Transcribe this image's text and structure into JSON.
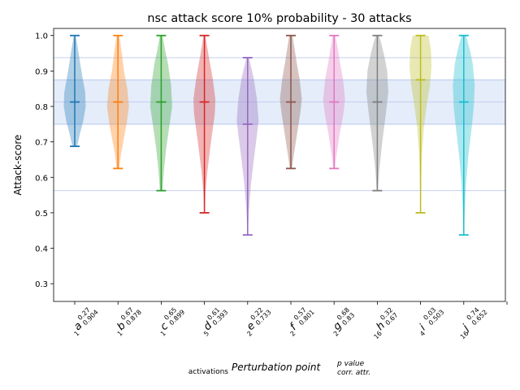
{
  "chart_data": {
    "type": "violin",
    "title": "nsc attack score 10% probability - 30 attacks",
    "ylabel": "Attack-score",
    "xlabel": {
      "main": "Perturbation point",
      "subscript": "activations",
      "superscript_top": "p value",
      "superscript_bottom": "corr. attr."
    },
    "ylim": [
      0.25,
      1.02
    ],
    "yticks": [
      0.3,
      0.4,
      0.5,
      0.6,
      0.7,
      0.8,
      0.9,
      1.0
    ],
    "ytick_labels": [
      "0.3",
      "0.4",
      "0.5",
      "0.6",
      "0.7",
      "0.8",
      "0.9",
      "1.0"
    ],
    "reference_band": {
      "low": 0.75,
      "high": 0.875,
      "color": "#dbe7f7"
    },
    "reference_lines": [
      0.5625,
      0.8125,
      0.9375
    ],
    "series": [
      {
        "letter": "a",
        "activations": "1",
        "p": "0.27",
        "corr": "0.904",
        "color": "#1f77b4",
        "min": 0.6875,
        "max": 1.0,
        "median": 0.8125,
        "profile": [
          [
            0.6875,
            0.22
          ],
          [
            0.72,
            0.45
          ],
          [
            0.76,
            0.78
          ],
          [
            0.8,
            1.0
          ],
          [
            0.84,
            0.95
          ],
          [
            0.88,
            0.72
          ],
          [
            0.92,
            0.5
          ],
          [
            0.96,
            0.3
          ],
          [
            1.0,
            0.08
          ]
        ]
      },
      {
        "letter": "b",
        "activations": "1",
        "p": "0.67",
        "corr": "0.878",
        "color": "#ff7f0e",
        "min": 0.625,
        "max": 1.0,
        "median": 0.8125,
        "profile": [
          [
            0.625,
            0.12
          ],
          [
            0.66,
            0.25
          ],
          [
            0.7,
            0.48
          ],
          [
            0.75,
            0.78
          ],
          [
            0.8,
            1.0
          ],
          [
            0.85,
            0.85
          ],
          [
            0.9,
            0.55
          ],
          [
            0.95,
            0.35
          ],
          [
            1.0,
            0.12
          ]
        ]
      },
      {
        "letter": "c",
        "activations": "1",
        "p": "0.65",
        "corr": "0.899",
        "color": "#2ca02c",
        "min": 0.5625,
        "max": 1.0,
        "median": 0.8125,
        "profile": [
          [
            0.5625,
            0.12
          ],
          [
            0.62,
            0.25
          ],
          [
            0.68,
            0.45
          ],
          [
            0.74,
            0.72
          ],
          [
            0.8,
            1.0
          ],
          [
            0.86,
            0.9
          ],
          [
            0.92,
            0.62
          ],
          [
            0.96,
            0.35
          ],
          [
            1.0,
            0.12
          ]
        ]
      },
      {
        "letter": "d",
        "activations": "5",
        "p": "0.61",
        "corr": "0.393",
        "color": "#d62728",
        "min": 0.5,
        "max": 1.0,
        "median": 0.8125,
        "profile": [
          [
            0.5,
            0.03
          ],
          [
            0.56,
            0.1
          ],
          [
            0.62,
            0.28
          ],
          [
            0.7,
            0.6
          ],
          [
            0.78,
            0.95
          ],
          [
            0.82,
            1.0
          ],
          [
            0.88,
            0.75
          ],
          [
            0.94,
            0.4
          ],
          [
            1.0,
            0.08
          ]
        ]
      },
      {
        "letter": "e",
        "activations": "2",
        "p": "0.22",
        "corr": "0.733",
        "color": "#9467bd",
        "min": 0.4375,
        "max": 0.9375,
        "median": 0.75,
        "profile": [
          [
            0.4375,
            0.03
          ],
          [
            0.5,
            0.1
          ],
          [
            0.58,
            0.3
          ],
          [
            0.66,
            0.6
          ],
          [
            0.72,
            0.85
          ],
          [
            0.76,
            1.0
          ],
          [
            0.82,
            0.85
          ],
          [
            0.88,
            0.55
          ],
          [
            0.9375,
            0.12
          ]
        ]
      },
      {
        "letter": "f",
        "activations": "2",
        "p": "0.57",
        "corr": "0.801",
        "color": "#8c564b",
        "min": 0.625,
        "max": 1.0,
        "median": 0.8125,
        "profile": [
          [
            0.625,
            0.1
          ],
          [
            0.66,
            0.25
          ],
          [
            0.72,
            0.55
          ],
          [
            0.78,
            0.85
          ],
          [
            0.82,
            1.0
          ],
          [
            0.88,
            0.78
          ],
          [
            0.92,
            0.55
          ],
          [
            0.96,
            0.35
          ],
          [
            1.0,
            0.15
          ]
        ]
      },
      {
        "letter": "g",
        "activations": "2",
        "p": "0.68",
        "corr": "0.83",
        "color": "#e377c2",
        "min": 0.625,
        "max": 1.0,
        "median": 0.8125,
        "profile": [
          [
            0.625,
            0.08
          ],
          [
            0.66,
            0.2
          ],
          [
            0.72,
            0.5
          ],
          [
            0.78,
            0.85
          ],
          [
            0.82,
            1.0
          ],
          [
            0.88,
            0.8
          ],
          [
            0.92,
            0.55
          ],
          [
            0.96,
            0.35
          ],
          [
            1.0,
            0.12
          ]
        ]
      },
      {
        "letter": "h",
        "activations": "16",
        "p": "0.32",
        "corr": "0.67",
        "color": "#7f7f7f",
        "min": 0.5625,
        "max": 1.0,
        "median": 0.8125,
        "profile": [
          [
            0.5625,
            0.05
          ],
          [
            0.62,
            0.18
          ],
          [
            0.7,
            0.45
          ],
          [
            0.78,
            0.78
          ],
          [
            0.84,
            1.0
          ],
          [
            0.9,
            0.9
          ],
          [
            0.94,
            0.65
          ],
          [
            0.98,
            0.35
          ],
          [
            1.0,
            0.12
          ]
        ]
      },
      {
        "letter": "i",
        "activations": "4",
        "p": "0.03",
        "corr": "0.503",
        "color": "#bcbd22",
        "min": 0.5,
        "max": 1.0,
        "median": 0.875,
        "profile": [
          [
            0.5,
            0.02
          ],
          [
            0.58,
            0.05
          ],
          [
            0.66,
            0.12
          ],
          [
            0.74,
            0.3
          ],
          [
            0.8,
            0.55
          ],
          [
            0.86,
            0.85
          ],
          [
            0.91,
            1.0
          ],
          [
            0.96,
            0.95
          ],
          [
            1.0,
            0.72
          ]
        ]
      },
      {
        "letter": "j",
        "activations": "16",
        "p": "0.74",
        "corr": "0.652",
        "color": "#17becf",
        "min": 0.4375,
        "max": 1.0,
        "median": 0.8125,
        "profile": [
          [
            0.4375,
            0.02
          ],
          [
            0.5,
            0.08
          ],
          [
            0.58,
            0.2
          ],
          [
            0.66,
            0.42
          ],
          [
            0.74,
            0.72
          ],
          [
            0.8,
            0.92
          ],
          [
            0.86,
            1.0
          ],
          [
            0.92,
            0.82
          ],
          [
            0.96,
            0.55
          ],
          [
            1.0,
            0.2
          ]
        ]
      }
    ]
  }
}
